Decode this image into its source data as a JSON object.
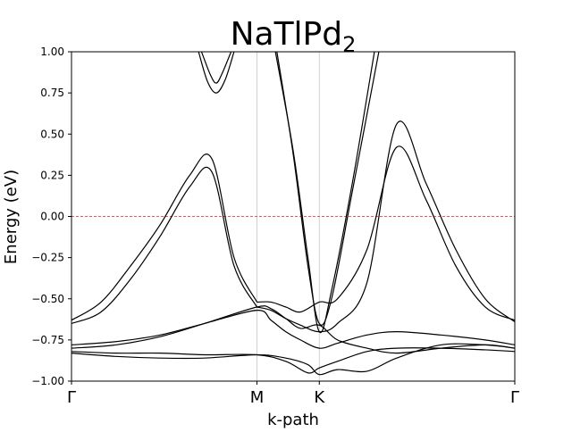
{
  "chart_data": {
    "type": "line",
    "title": "NaTlPd",
    "title_subscript": "2",
    "xlabel": "k-path",
    "ylabel": "Energy (eV)",
    "ylim": [
      -1.0,
      1.0
    ],
    "xlim": [
      0,
      3.0
    ],
    "yticks": [
      -1.0,
      -0.75,
      -0.5,
      -0.25,
      0.0,
      0.25,
      0.5,
      0.75,
      1.0
    ],
    "ytick_labels": [
      "−1.00",
      "−0.75",
      "−0.50",
      "−0.25",
      "0.00",
      "0.25",
      "0.50",
      "0.75",
      "1.00"
    ],
    "high_symmetry_points": [
      {
        "label": "Γ",
        "x": 0.0
      },
      {
        "label": "M",
        "x": 1.255
      },
      {
        "label": "K",
        "x": 1.677
      },
      {
        "label": "Γ",
        "x": 3.0
      }
    ],
    "fermi_level": {
      "energy": 0.0,
      "color": "#d62728",
      "style": "dashed"
    },
    "grid": false,
    "line_color": "#000000",
    "series": [
      {
        "x": [
          0,
          0.2,
          0.4,
          0.6,
          0.8,
          0.95,
          1.1,
          1.255
        ],
        "y": [
          -0.63,
          -0.52,
          -0.3,
          -0.05,
          0.25,
          0.35,
          -0.25,
          -0.52
        ]
      },
      {
        "x": [
          0,
          0.2,
          0.4,
          0.6,
          0.8,
          0.95,
          1.1,
          1.255
        ],
        "y": [
          -0.65,
          -0.58,
          -0.38,
          -0.12,
          0.18,
          0.27,
          -0.3,
          -0.55
        ]
      },
      {
        "x": [
          0.86,
          0.92,
          0.98,
          1.04,
          1.1
        ],
        "y": [
          1.0,
          0.82,
          0.75,
          0.83,
          1.0
        ]
      },
      {
        "x": [
          0.88,
          0.94,
          0.98,
          1.02,
          1.08
        ],
        "y": [
          1.0,
          0.86,
          0.81,
          0.87,
          1.0
        ]
      },
      {
        "x": [
          1.38,
          1.5,
          1.6,
          1.677,
          1.76,
          1.9,
          2.05
        ],
        "y": [
          1.0,
          0.4,
          -0.25,
          -0.7,
          -0.45,
          0.2,
          1.0
        ]
      },
      {
        "x": [
          1.39,
          1.5,
          1.6,
          1.677,
          1.76,
          1.9,
          2.08
        ],
        "y": [
          1.0,
          0.38,
          -0.3,
          -0.65,
          -0.5,
          0.15,
          1.0
        ]
      },
      {
        "x": [
          1.255,
          1.35,
          1.45,
          1.55,
          1.677,
          1.8,
          2.0,
          2.2,
          2.4,
          2.6,
          2.8,
          3.0
        ],
        "y": [
          -0.52,
          -0.52,
          -0.55,
          -0.58,
          -0.52,
          -0.5,
          -0.2,
          0.42,
          0.1,
          -0.3,
          -0.55,
          -0.63
        ]
      },
      {
        "x": [
          1.255,
          1.35,
          1.45,
          1.55,
          1.677,
          1.8,
          2.0,
          2.2,
          2.4,
          2.6,
          2.8,
          3.0
        ],
        "y": [
          -0.55,
          -0.57,
          -0.62,
          -0.66,
          -0.7,
          -0.65,
          -0.4,
          0.56,
          0.2,
          -0.2,
          -0.5,
          -0.64
        ]
      },
      {
        "x": [
          0,
          0.3,
          0.6,
          0.9,
          1.255,
          1.35,
          1.45,
          1.55,
          1.677,
          1.8,
          2.0,
          2.2,
          2.5,
          2.8,
          3.0
        ],
        "y": [
          -0.78,
          -0.76,
          -0.72,
          -0.65,
          -0.57,
          -0.63,
          -0.7,
          -0.75,
          -0.8,
          -0.77,
          -0.72,
          -0.7,
          -0.72,
          -0.75,
          -0.78
        ]
      },
      {
        "x": [
          0,
          0.3,
          0.6,
          0.9,
          1.255,
          1.35,
          1.45,
          1.55,
          1.677,
          1.8,
          2.0,
          2.2,
          2.5,
          2.8,
          3.0
        ],
        "y": [
          -0.8,
          -0.78,
          -0.73,
          -0.65,
          -0.55,
          -0.56,
          -0.62,
          -0.68,
          -0.66,
          -0.75,
          -0.8,
          -0.83,
          -0.8,
          -0.78,
          -0.8
        ]
      },
      {
        "x": [
          0,
          0.3,
          0.6,
          0.9,
          1.255,
          1.45,
          1.6,
          1.677,
          1.8,
          2.0,
          2.2,
          2.5,
          2.8,
          3.0
        ],
        "y": [
          -0.82,
          -0.83,
          -0.83,
          -0.84,
          -0.84,
          -0.88,
          -0.95,
          -0.92,
          -0.88,
          -0.82,
          -0.8,
          -0.8,
          -0.81,
          -0.82
        ]
      },
      {
        "x": [
          0,
          0.3,
          0.6,
          0.9,
          1.255,
          1.45,
          1.6,
          1.677,
          1.8,
          2.0,
          2.2,
          2.5,
          2.8,
          3.0
        ],
        "y": [
          -0.83,
          -0.85,
          -0.86,
          -0.86,
          -0.84,
          -0.86,
          -0.9,
          -0.96,
          -0.93,
          -0.94,
          -0.86,
          -0.78,
          -0.78,
          -0.8
        ]
      }
    ]
  }
}
